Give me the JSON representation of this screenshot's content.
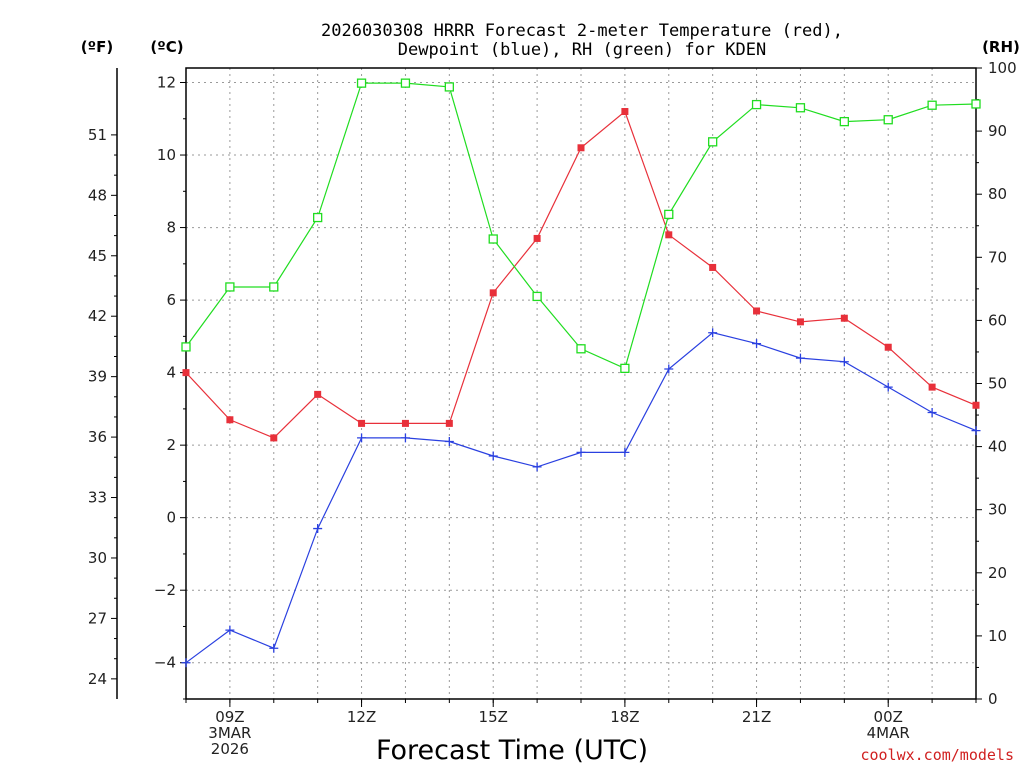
{
  "chart_data": {
    "type": "line",
    "title_lines": [
      "2026030308 HRRR Forecast 2-meter Temperature (red),",
      "Dewpoint (blue), RH (green) for KDEN"
    ],
    "units": {
      "fahrenheit": "(ºF)",
      "celsius": "(ºC)",
      "rh": "(RH)"
    },
    "xlabel": "Forecast Time (UTC)",
    "credit": "coolwx.com/models",
    "x_hours": [
      8,
      9,
      10,
      11,
      12,
      13,
      14,
      15,
      16,
      17,
      18,
      19,
      20,
      21,
      22,
      23,
      24,
      25,
      26
    ],
    "xlim": [
      8,
      26
    ],
    "x_ticks": [
      {
        "hour": 9,
        "lines": [
          "09Z",
          "3MAR",
          "2026"
        ]
      },
      {
        "hour": 12,
        "lines": [
          "12Z"
        ]
      },
      {
        "hour": 15,
        "lines": [
          "15Z"
        ]
      },
      {
        "hour": 18,
        "lines": [
          "18Z"
        ]
      },
      {
        "hour": 21,
        "lines": [
          "21Z"
        ]
      },
      {
        "hour": 24,
        "lines": [
          "00Z",
          "4MAR"
        ]
      }
    ],
    "celsius_axis": {
      "ylim": [
        -5,
        12.4
      ],
      "ticks": [
        "12",
        "10",
        "8",
        "6",
        "4",
        "2",
        "0",
        "−2",
        "−4"
      ],
      "tick_values": [
        12,
        10,
        8,
        6,
        4,
        2,
        0,
        -2,
        -4
      ]
    },
    "fahrenheit_axis": {
      "ticks": [
        "51",
        "48",
        "45",
        "42",
        "39",
        "36",
        "33",
        "30",
        "27",
        "24"
      ],
      "tick_values": [
        51,
        48,
        45,
        42,
        39,
        36,
        33,
        30,
        27,
        24
      ]
    },
    "rh_axis": {
      "ylim": [
        0,
        100
      ],
      "ticks": [
        "100",
        "90",
        "80",
        "70",
        "60",
        "50",
        "40",
        "30",
        "20",
        "10",
        "0"
      ],
      "tick_values": [
        100,
        90,
        80,
        70,
        60,
        50,
        40,
        30,
        20,
        10,
        0
      ]
    },
    "series": [
      {
        "name": "Temperature",
        "axis": "celsius",
        "color": "#e8303a",
        "marker": "filled-square",
        "values": [
          4.0,
          2.7,
          2.2,
          3.4,
          2.6,
          2.6,
          2.6,
          6.2,
          7.7,
          10.2,
          11.2,
          7.8,
          6.9,
          5.7,
          5.4,
          5.5,
          4.7,
          3.6,
          3.1
        ]
      },
      {
        "name": "Dewpoint",
        "axis": "celsius",
        "color": "#2a40e0",
        "marker": "plus",
        "values": [
          -4.0,
          -3.1,
          -3.6,
          -0.3,
          2.2,
          2.2,
          2.1,
          1.7,
          1.4,
          1.8,
          1.8,
          4.1,
          5.1,
          4.8,
          4.4,
          4.3,
          3.6,
          2.9,
          2.4
        ]
      },
      {
        "name": "RH",
        "axis": "rh",
        "color": "#20dd20",
        "marker": "open-square",
        "values": [
          55.8,
          65.3,
          65.3,
          76.3,
          97.6,
          97.6,
          97.0,
          72.9,
          63.8,
          55.5,
          52.4,
          76.8,
          88.3,
          94.2,
          93.7,
          91.5,
          91.8,
          94.1,
          94.3
        ]
      }
    ]
  }
}
